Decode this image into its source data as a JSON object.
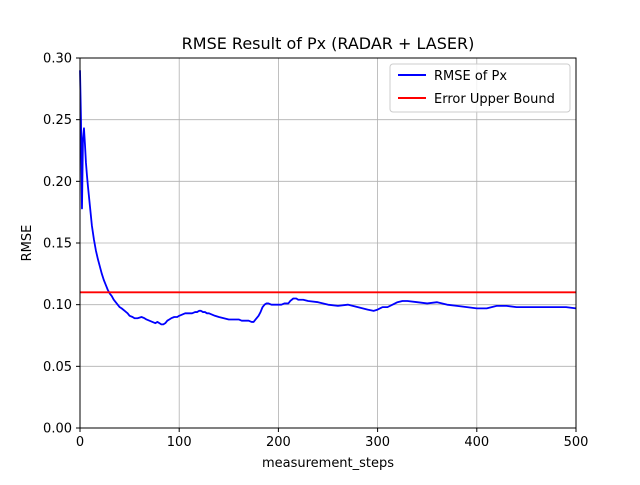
{
  "chart_data": {
    "type": "line",
    "title": "RMSE Result of Px (RADAR + LASER)",
    "xlabel": "measurement_steps",
    "ylabel": "RMSE",
    "xlim": [
      0,
      500
    ],
    "ylim": [
      0,
      0.3
    ],
    "grid": true,
    "legend_position": "top-right",
    "x_ticks": [
      {
        "value": 0,
        "label": "0"
      },
      {
        "value": 100,
        "label": "100"
      },
      {
        "value": 200,
        "label": "200"
      },
      {
        "value": 300,
        "label": "300"
      },
      {
        "value": 400,
        "label": "400"
      },
      {
        "value": 500,
        "label": "500"
      }
    ],
    "y_ticks": [
      {
        "value": 0.0,
        "label": "0.00"
      },
      {
        "value": 0.05,
        "label": "0.05"
      },
      {
        "value": 0.1,
        "label": "0.10"
      },
      {
        "value": 0.15,
        "label": "0.15"
      },
      {
        "value": 0.2,
        "label": "0.20"
      },
      {
        "value": 0.25,
        "label": "0.25"
      },
      {
        "value": 0.3,
        "label": "0.30"
      }
    ],
    "series": [
      {
        "name": "RMSE of Px",
        "color": "#0000ff",
        "x": [
          0,
          1,
          2,
          3,
          4,
          5,
          6,
          7,
          8,
          10,
          12,
          14,
          16,
          18,
          20,
          22,
          24,
          26,
          28,
          30,
          32,
          34,
          36,
          38,
          40,
          42,
          45,
          48,
          50,
          53,
          55,
          58,
          62,
          65,
          67,
          70,
          73,
          76,
          78,
          80,
          82,
          84,
          86,
          88,
          90,
          92,
          95,
          98,
          100,
          103,
          106,
          108,
          110,
          113,
          116,
          118,
          120,
          122,
          124,
          126,
          128,
          130,
          133,
          136,
          140,
          145,
          150,
          153,
          156,
          160,
          163,
          166,
          170,
          173,
          175,
          177,
          180,
          182,
          184,
          186,
          188,
          190,
          193,
          196,
          200,
          203,
          206,
          210,
          212,
          215,
          218,
          220,
          225,
          230,
          240,
          250,
          260,
          270,
          280,
          290,
          296,
          300,
          305,
          310,
          315,
          320,
          325,
          330,
          340,
          350,
          360,
          370,
          380,
          390,
          400,
          410,
          420,
          430,
          440,
          450,
          460,
          470,
          480,
          490,
          500
        ],
        "y": [
          0.29,
          0.25,
          0.178,
          0.235,
          0.243,
          0.23,
          0.215,
          0.205,
          0.196,
          0.18,
          0.164,
          0.153,
          0.144,
          0.137,
          0.131,
          0.125,
          0.12,
          0.116,
          0.112,
          0.109,
          0.107,
          0.104,
          0.102,
          0.1,
          0.098,
          0.097,
          0.095,
          0.093,
          0.091,
          0.09,
          0.089,
          0.089,
          0.09,
          0.089,
          0.088,
          0.087,
          0.086,
          0.085,
          0.086,
          0.085,
          0.084,
          0.084,
          0.085,
          0.087,
          0.088,
          0.089,
          0.09,
          0.09,
          0.091,
          0.092,
          0.093,
          0.093,
          0.093,
          0.093,
          0.094,
          0.094,
          0.095,
          0.095,
          0.094,
          0.094,
          0.093,
          0.093,
          0.092,
          0.091,
          0.09,
          0.089,
          0.088,
          0.088,
          0.088,
          0.088,
          0.087,
          0.087,
          0.087,
          0.086,
          0.086,
          0.088,
          0.091,
          0.094,
          0.098,
          0.1,
          0.101,
          0.101,
          0.1,
          0.1,
          0.1,
          0.1,
          0.101,
          0.101,
          0.103,
          0.105,
          0.105,
          0.104,
          0.104,
          0.103,
          0.102,
          0.1,
          0.099,
          0.1,
          0.098,
          0.096,
          0.095,
          0.096,
          0.098,
          0.098,
          0.1,
          0.102,
          0.103,
          0.103,
          0.102,
          0.101,
          0.102,
          0.1,
          0.099,
          0.098,
          0.097,
          0.097,
          0.099,
          0.099,
          0.098,
          0.098,
          0.098,
          0.098,
          0.098,
          0.098,
          0.097
        ]
      },
      {
        "name": "Error Upper Bound",
        "color": "#ff0000",
        "x": [
          0,
          500
        ],
        "y": [
          0.11,
          0.11
        ]
      }
    ]
  }
}
